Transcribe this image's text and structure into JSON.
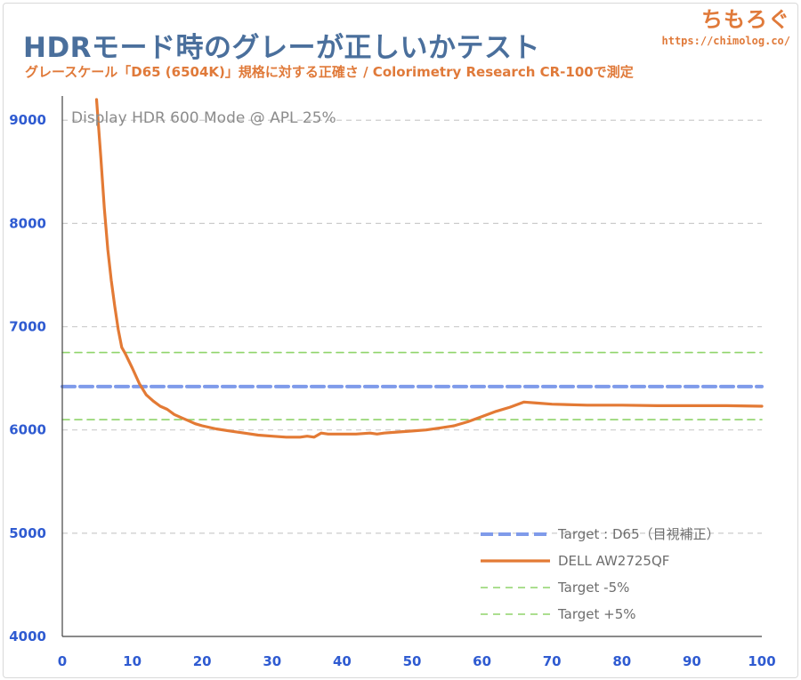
{
  "header": {
    "title": "HDRモード時のグレーが正しいかテスト",
    "subtitle": "グレースケール「D65 (6504K)」規格に対する正確さ / Colorimetry Research CR-100で測定",
    "brand": "ちもろぐ",
    "brand_url": "https://chimolog.co/"
  },
  "chart_data": {
    "type": "line",
    "plot_label": "Display HDR 600 Mode @ APL 25%",
    "xlim": [
      0,
      100
    ],
    "ylim": [
      4000,
      9200
    ],
    "x_ticks": [
      0,
      10,
      20,
      30,
      40,
      50,
      60,
      70,
      80,
      90,
      100
    ],
    "y_ticks": [
      4000,
      5000,
      6000,
      7000,
      8000,
      9000
    ],
    "grid": true,
    "legend_position": "bottom-right",
    "colors": {
      "target": "#7f9bea",
      "measured": "#e37a35",
      "tolerance": "#8fd46a",
      "tick": "#2f5bd1",
      "grid": "#cccccc"
    },
    "series": [
      {
        "name": "Target : D65（目視補正）",
        "style": "dashed-thick",
        "x": [
          0,
          100
        ],
        "y": [
          6420,
          6420
        ]
      },
      {
        "name": "DELL AW2725QF",
        "style": "solid",
        "x": [
          4.9,
          5.5,
          6,
          6.5,
          7,
          7.5,
          8,
          8.5,
          9,
          10,
          11,
          12,
          13,
          14,
          15,
          16,
          17,
          18,
          19,
          20,
          22,
          24,
          26,
          28,
          30,
          32,
          34,
          35,
          36,
          37,
          38,
          40,
          42,
          44,
          45,
          46,
          48,
          50,
          52,
          54,
          56,
          58,
          60,
          62,
          64,
          66,
          68,
          70,
          75,
          80,
          85,
          90,
          95,
          100
        ],
        "y": [
          9200,
          8650,
          8150,
          7750,
          7450,
          7200,
          6970,
          6800,
          6740,
          6600,
          6450,
          6340,
          6280,
          6230,
          6200,
          6150,
          6120,
          6090,
          6060,
          6040,
          6010,
          5990,
          5970,
          5950,
          5940,
          5930,
          5930,
          5940,
          5930,
          5970,
          5960,
          5960,
          5960,
          5970,
          5960,
          5970,
          5980,
          5990,
          6000,
          6020,
          6040,
          6080,
          6130,
          6180,
          6220,
          6270,
          6260,
          6250,
          6240,
          6240,
          6235,
          6235,
          6235,
          6230
        ]
      },
      {
        "name": "Target -5%",
        "style": "dashed-thin",
        "x": [
          0,
          100
        ],
        "y": [
          6100,
          6100
        ]
      },
      {
        "name": "Target +5%",
        "style": "dashed-thin",
        "x": [
          0,
          100
        ],
        "y": [
          6750,
          6750
        ]
      }
    ]
  }
}
